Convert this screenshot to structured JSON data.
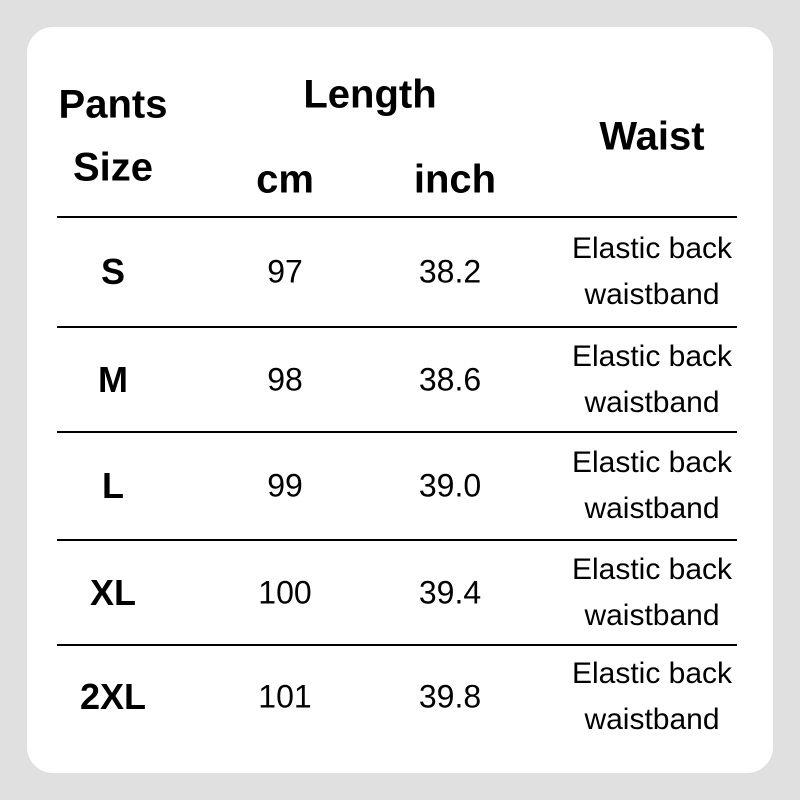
{
  "header": {
    "size_line1": "Pants",
    "size_line2": "Size",
    "length": "Length",
    "cm": "cm",
    "inch": "inch",
    "waist": "Waist"
  },
  "rows": [
    {
      "size": "S",
      "cm": "97",
      "inch": "38.2",
      "waist_line1": "Elastic back",
      "waist_line2": "waistband"
    },
    {
      "size": "M",
      "cm": "98",
      "inch": "38.6",
      "waist_line1": "Elastic back",
      "waist_line2": "waistband"
    },
    {
      "size": "L",
      "cm": "99",
      "inch": "39.0",
      "waist_line1": "Elastic back",
      "waist_line2": "waistband"
    },
    {
      "size": "XL",
      "cm": "100",
      "inch": "39.4",
      "waist_line1": "Elastic back",
      "waist_line2": "waistband"
    },
    {
      "size": "2XL",
      "cm": "101",
      "inch": "39.8",
      "waist_line1": "Elastic back",
      "waist_line2": "waistband"
    }
  ]
}
